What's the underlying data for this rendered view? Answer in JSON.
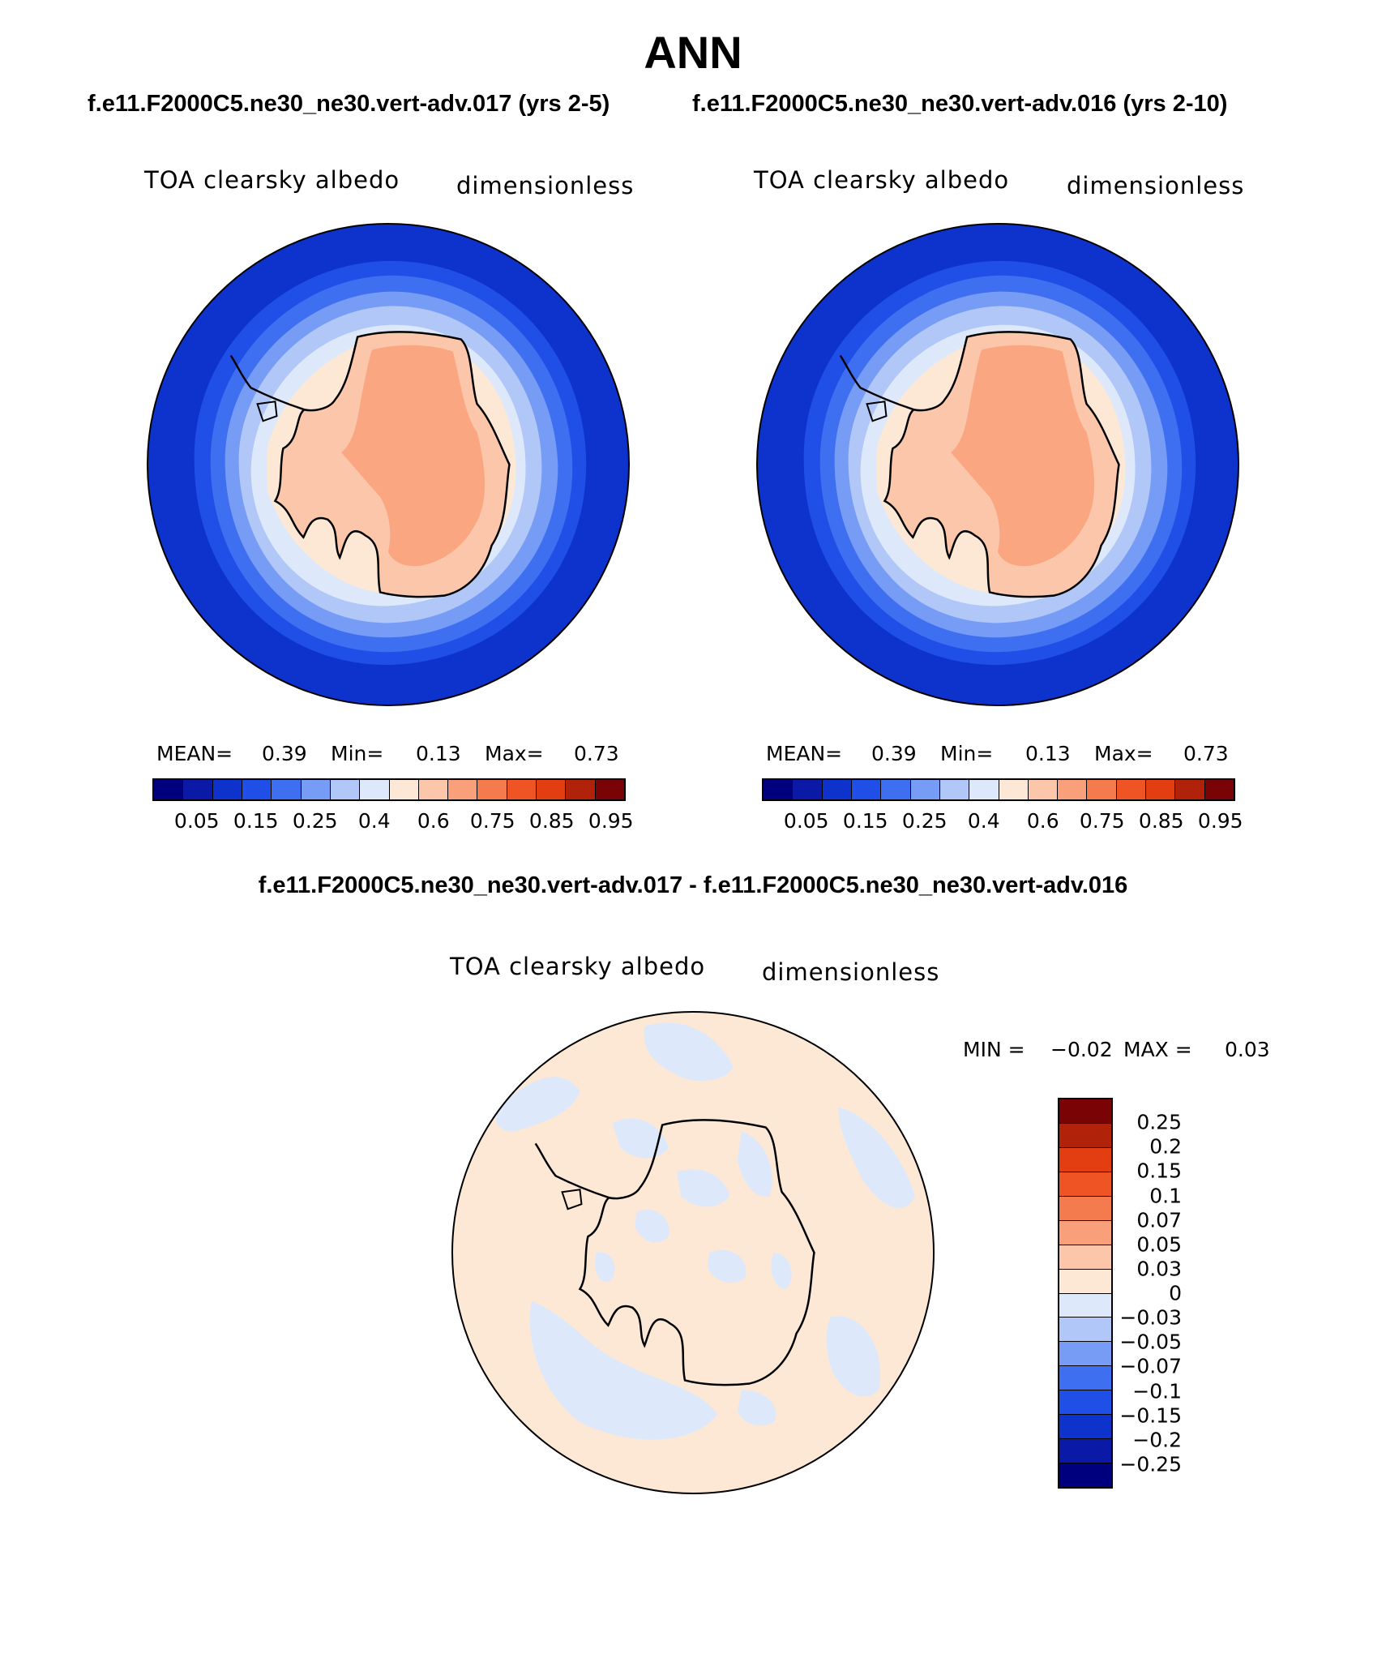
{
  "figure": {
    "season": "ANN",
    "case1_title": "f.e11.F2000C5.ne30_ne30.vert-adv.017 (yrs 2-5)",
    "case2_title": "f.e11.F2000C5.ne30_ne30.vert-adv.016 (yrs 2-10)",
    "diff_title": "f.e11.F2000C5.ne30_ne30.vert-adv.017 - f.e11.F2000C5.ne30_ne30.vert-adv.016"
  },
  "panels": [
    {
      "variable": "TOA clearsky albedo",
      "units": "dimensionless",
      "stats": {
        "mean_label": "MEAN=",
        "mean": "0.39",
        "min_label": "Min=",
        "min": "0.13",
        "max_label": "Max=",
        "max": "0.73"
      }
    },
    {
      "variable": "TOA clearsky albedo",
      "units": "dimensionless",
      "stats": {
        "mean_label": "MEAN=",
        "mean": "0.39",
        "min_label": "Min=",
        "min": "0.13",
        "max_label": "Max=",
        "max": "0.73"
      }
    }
  ],
  "diff_panel": {
    "variable": "TOA clearsky albedo",
    "units": "dimensionless",
    "min_label": "MIN =",
    "min": "−0.02",
    "max_label": "MAX =",
    "max": "0.03"
  },
  "colorbar": {
    "colors": [
      "#00007f",
      "#0a1aa6",
      "#0d33cc",
      "#1f4fe6",
      "#3e6ff0",
      "#779cf5",
      "#b0c7f8",
      "#dde9fb",
      "#fde8d6",
      "#fcc6aa",
      "#f9a07a",
      "#f37b4e",
      "#ef5424",
      "#e33e12",
      "#b02209",
      "#7a0306"
    ],
    "labels": [
      "0.05",
      "0.15",
      "0.25",
      "0.4",
      "0.6",
      "0.75",
      "0.85",
      "0.95"
    ]
  },
  "diff_colorbar": {
    "colors": [
      "#7a0306",
      "#b02209",
      "#e33e12",
      "#ef5424",
      "#f37b4e",
      "#f9a07a",
      "#fcc6aa",
      "#fde8d6",
      "#dde9fb",
      "#b0c7f8",
      "#779cf5",
      "#3e6ff0",
      "#1f4fe6",
      "#0d33cc",
      "#0a1aa6",
      "#00007f"
    ],
    "labels": [
      "0.25",
      "0.2",
      "0.15",
      "0.1",
      "0.07",
      "0.05",
      "0.03",
      "0",
      "−0.03",
      "−0.05",
      "−0.07",
      "−0.1",
      "−0.15",
      "−0.2",
      "−0.25"
    ]
  }
}
